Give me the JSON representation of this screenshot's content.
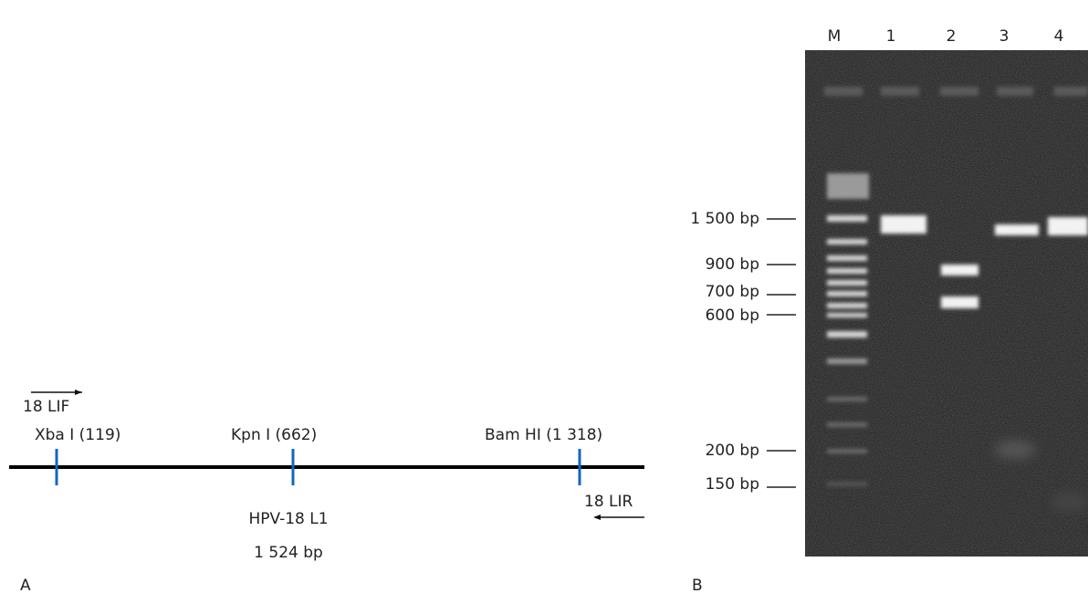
{
  "panel_a": {
    "label": "A",
    "forward_primer": "18 LIF",
    "reverse_primer": "18 LIR",
    "sites": [
      "Xba I (119)",
      "Kpn I (662)",
      "Bam HI (1 318)"
    ],
    "gene": "HPV-18 L1",
    "length": "1 524 bp"
  },
  "panel_b": {
    "label": "B",
    "lanes": [
      "M",
      "1",
      "2",
      "3",
      "4"
    ],
    "size_markers": [
      "1 500 bp",
      "900 bp",
      "700 bp",
      "600 bp",
      "200 bp",
      "150 bp"
    ]
  }
}
